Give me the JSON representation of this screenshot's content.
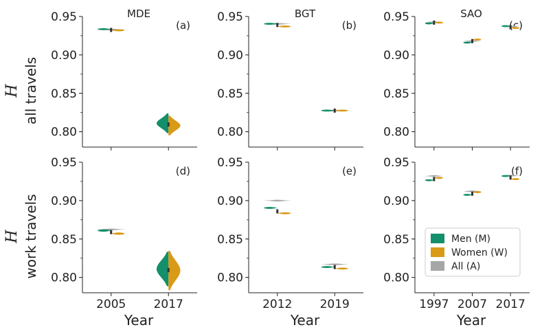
{
  "chart_data": {
    "type": "violin",
    "colors": {
      "men": "#138f6b",
      "women": "#d99a16",
      "all": "#a6a6a6",
      "median": "#333333"
    },
    "legend": {
      "position": "lower-right of panel (f)",
      "entries": [
        {
          "key": "men",
          "label": "Men (M)"
        },
        {
          "key": "women",
          "label": "Women (W)"
        },
        {
          "key": "all",
          "label": "All (A)"
        }
      ]
    },
    "ylim": [
      0.78,
      0.95
    ],
    "yticks": [
      "0.80",
      "0.85",
      "0.90",
      "0.95"
    ],
    "xlabel": "Year",
    "rows": [
      {
        "symbol": "H",
        "label": "all travels"
      },
      {
        "symbol": "H",
        "label": "work travels"
      }
    ],
    "columns": [
      {
        "title": "MDE",
        "years": [
          "2005",
          "2017"
        ]
      },
      {
        "title": "BGT",
        "years": [
          "2012",
          "2019"
        ]
      },
      {
        "title": "SAO",
        "years": [
          "1997",
          "2007",
          "2017"
        ]
      }
    ],
    "panels": [
      {
        "letter": "(a)",
        "row": 0,
        "col": 0,
        "groups": [
          {
            "year": "2005",
            "men": {
              "center": 0.9335,
              "spread": 0.001
            },
            "women": {
              "center": 0.932,
              "spread": 0.001
            },
            "all": {
              "center": 0.933,
              "spread": 0.0006
            },
            "median": 0.9325
          },
          {
            "year": "2017",
            "men": {
              "center": 0.811,
              "spread": 0.008
            },
            "women": {
              "center": 0.808,
              "spread": 0.008
            },
            "all": {
              "center": 0.8095,
              "spread": 0.003
            },
            "median": 0.8095
          }
        ]
      },
      {
        "letter": "(b)",
        "row": 0,
        "col": 1,
        "groups": [
          {
            "year": "2012",
            "men": {
              "center": 0.9405,
              "spread": 0.001
            },
            "women": {
              "center": 0.937,
              "spread": 0.001
            },
            "all": {
              "center": 0.9405,
              "spread": 0.0005
            },
            "median": 0.939
          },
          {
            "year": "2019",
            "men": {
              "center": 0.8275,
              "spread": 0.0006
            },
            "women": {
              "center": 0.8275,
              "spread": 0.0006
            },
            "all": {
              "center": 0.8275,
              "spread": 0.0004
            },
            "median": 0.8275
          }
        ]
      },
      {
        "letter": "(c)",
        "row": 0,
        "col": 2,
        "groups": [
          {
            "year": "1997",
            "men": {
              "center": 0.941,
              "spread": 0.001
            },
            "women": {
              "center": 0.942,
              "spread": 0.001
            },
            "all": {
              "center": 0.9425,
              "spread": 0.0005
            },
            "median": 0.942
          },
          {
            "year": "2007",
            "men": {
              "center": 0.916,
              "spread": 0.0012
            },
            "women": {
              "center": 0.92,
              "spread": 0.0012
            },
            "all": {
              "center": 0.918,
              "spread": 0.0005
            },
            "median": 0.918
          },
          {
            "year": "2017",
            "men": {
              "center": 0.9375,
              "spread": 0.001
            },
            "women": {
              "center": 0.935,
              "spread": 0.001
            },
            "all": {
              "center": 0.937,
              "spread": 0.0005
            },
            "median": 0.936
          }
        ]
      },
      {
        "letter": "(d)",
        "row": 1,
        "col": 0,
        "groups": [
          {
            "year": "2005",
            "men": {
              "center": 0.861,
              "spread": 0.0015
            },
            "women": {
              "center": 0.857,
              "spread": 0.0015
            },
            "all": {
              "center": 0.8625,
              "spread": 0.001
            },
            "median": 0.859
          },
          {
            "year": "2017",
            "men": {
              "center": 0.811,
              "spread": 0.014
            },
            "women": {
              "center": 0.809,
              "spread": 0.016
            },
            "all": {
              "center": 0.81,
              "spread": 0.008
            },
            "median": 0.8095
          }
        ]
      },
      {
        "letter": "(e)",
        "row": 1,
        "col": 1,
        "groups": [
          {
            "year": "2012",
            "men": {
              "center": 0.8905,
              "spread": 0.0012
            },
            "women": {
              "center": 0.8835,
              "spread": 0.0012
            },
            "all": {
              "center": 0.9,
              "spread": 0.0006
            },
            "median": 0.886
          },
          {
            "year": "2019",
            "men": {
              "center": 0.8135,
              "spread": 0.001
            },
            "women": {
              "center": 0.8115,
              "spread": 0.001
            },
            "all": {
              "center": 0.817,
              "spread": 0.0005
            },
            "median": 0.8135
          }
        ]
      },
      {
        "letter": "(f)",
        "row": 1,
        "col": 2,
        "groups": [
          {
            "year": "1997",
            "men": {
              "center": 0.9265,
              "spread": 0.0012
            },
            "women": {
              "center": 0.9295,
              "spread": 0.0012
            },
            "all": {
              "center": 0.932,
              "spread": 0.0005
            },
            "median": 0.928
          },
          {
            "year": "2007",
            "men": {
              "center": 0.9075,
              "spread": 0.001
            },
            "women": {
              "center": 0.911,
              "spread": 0.001
            },
            "all": {
              "center": 0.912,
              "spread": 0.0005
            },
            "median": 0.909
          },
          {
            "year": "2017",
            "men": {
              "center": 0.932,
              "spread": 0.001
            },
            "women": {
              "center": 0.928,
              "spread": 0.001
            },
            "all": {
              "center": 0.9325,
              "spread": 0.0005
            },
            "median": 0.93
          }
        ]
      }
    ]
  }
}
